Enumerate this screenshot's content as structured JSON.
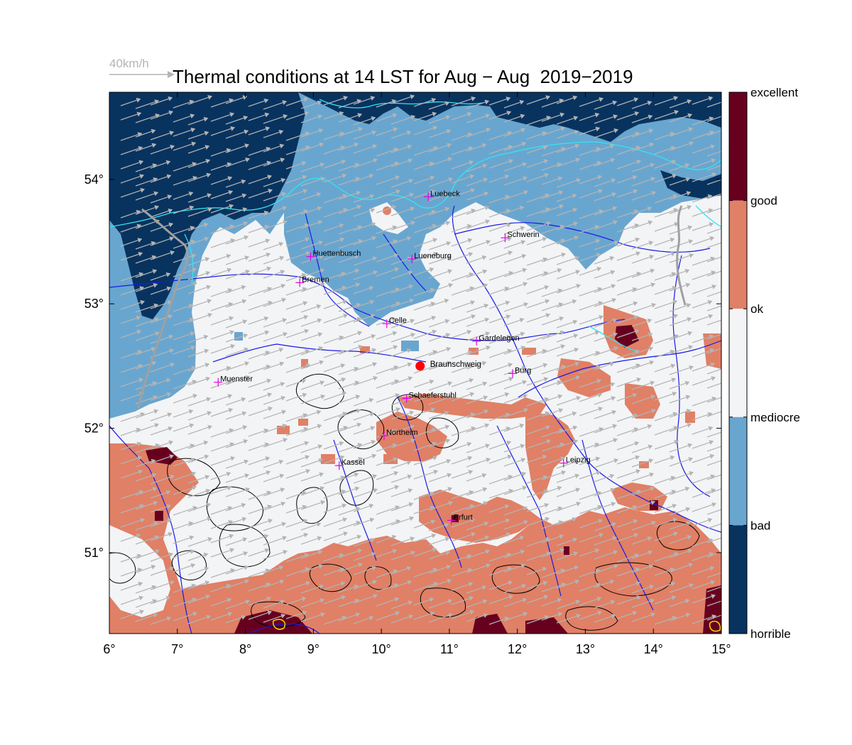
{
  "title": "Thermal conditions at 14 LST for Aug − Aug  2019−2019",
  "wind_reference": {
    "label": "40km/h",
    "color": "#b4b4b4"
  },
  "map": {
    "lon_range": [
      6,
      15
    ],
    "lat_range": [
      50.35,
      54.7
    ],
    "x_ticks": [
      "6°",
      "7°",
      "8°",
      "9°",
      "10°",
      "11°",
      "12°",
      "13°",
      "14°",
      "15°"
    ],
    "y_ticks": [
      "51°",
      "52°",
      "53°",
      "54°"
    ]
  },
  "legend": {
    "categories": [
      "excellent",
      "good",
      "ok",
      "mediocre",
      "bad",
      "horrible"
    ],
    "colors": [
      "#67001f",
      "#e08066",
      "#f3f4f6",
      "#f3f4f6",
      "#69a6cf",
      "#08335f"
    ]
  },
  "colors": {
    "horrible": "#08335f",
    "bad": "#69a6cf",
    "mediocre": "#f3f4f6",
    "ok_orange": "#e08066",
    "good": "#e08066",
    "excellent": "#67001f",
    "coast": "#33e4f2",
    "rivers": "#1a1ae6",
    "wind_arrows": "#b4b4b4",
    "cities": "#e600e6",
    "highlight": "#ff0000"
  },
  "cities": [
    {
      "name": "Luebeck",
      "lon": 10.69,
      "lat": 53.86
    },
    {
      "name": "Huettenbusch",
      "lon": 8.96,
      "lat": 53.38
    },
    {
      "name": "Lueneburg",
      "lon": 10.45,
      "lat": 53.36
    },
    {
      "name": "Schwerin",
      "lon": 11.82,
      "lat": 53.53
    },
    {
      "name": "Bremen",
      "lon": 8.8,
      "lat": 53.17
    },
    {
      "name": "Celle",
      "lon": 10.08,
      "lat": 52.84
    },
    {
      "name": "Gardelegen",
      "lon": 11.4,
      "lat": 52.7
    },
    {
      "name": "Muenster",
      "lon": 7.6,
      "lat": 52.37
    },
    {
      "name": "Burg",
      "lon": 11.93,
      "lat": 52.44
    },
    {
      "name": "Schaeferstuhl",
      "lon": 10.37,
      "lat": 52.24
    },
    {
      "name": "Northeim",
      "lon": 10.04,
      "lat": 51.94
    },
    {
      "name": "Kassel",
      "lon": 9.38,
      "lat": 51.7
    },
    {
      "name": "Leipzig",
      "lon": 12.68,
      "lat": 51.72
    },
    {
      "name": "Erfurt",
      "lon": 11.03,
      "lat": 51.26
    }
  ],
  "highlight_site": {
    "name": "Braunschweig",
    "lon": 10.57,
    "lat": 52.5
  }
}
